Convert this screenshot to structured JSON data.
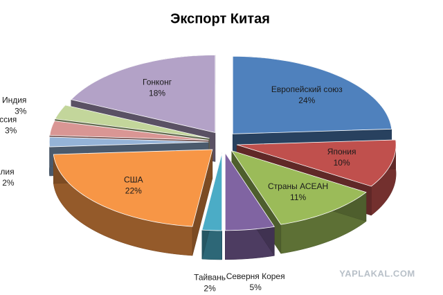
{
  "chart_data": {
    "type": "pie",
    "title": "Экспорт Китая",
    "categories": [
      "Европейский союз",
      "Япония",
      "Страны АСЕАН",
      "Северня Корея",
      "Тайвань",
      "США",
      "Бразилия",
      "Россия",
      "Индия",
      "Гонконг"
    ],
    "values": [
      24,
      10,
      11,
      5,
      2,
      22,
      2,
      3,
      3,
      18
    ],
    "value_labels": [
      "24%",
      "10%",
      "11%",
      "5%",
      "2%",
      "22%",
      "2%",
      "3%",
      "3%",
      "18%"
    ],
    "colors": [
      "#4f81bd",
      "#c0504d",
      "#9bbb59",
      "#8064a2",
      "#4bacc6",
      "#f79646",
      "#95b3d7",
      "#d99694",
      "#c3d69b",
      "#b3a2c7"
    ],
    "watermark": "YAPLAKAL.COM"
  }
}
